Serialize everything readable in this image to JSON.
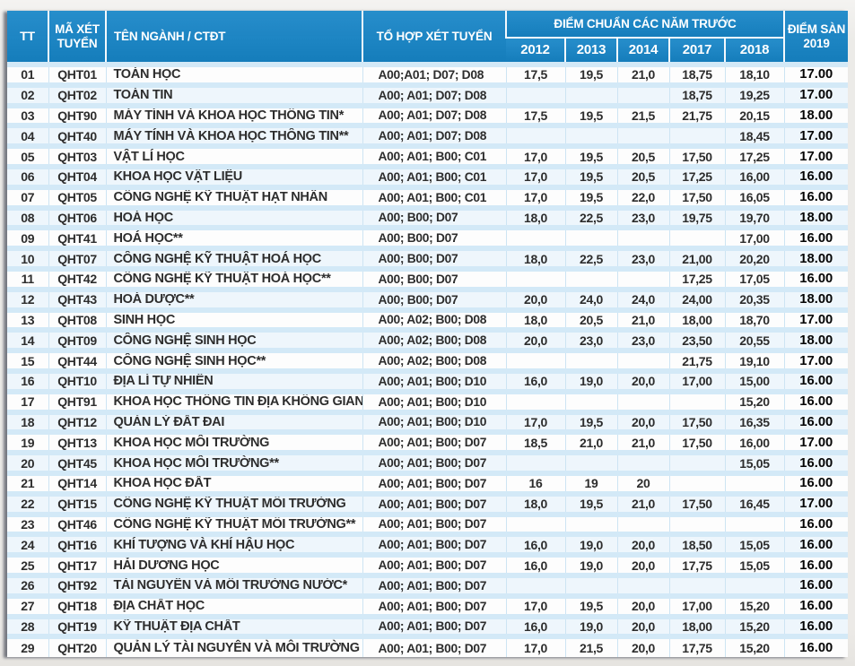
{
  "colors": {
    "page_bg": "#eeedea",
    "header_bg": "#1685c7",
    "header_text": "#ffffff",
    "stripe": "#d3e9f7",
    "grid_line": "#cde4f3",
    "body_text": "#2d2d2d",
    "floor_text": "#050505"
  },
  "table": {
    "header": {
      "tt": "TT",
      "code": "MÃ XÉT TUYỂN",
      "name": "TÊN NGÀNH / CTĐT",
      "combo": "TỔ HỢP XÉT TUYỂN",
      "prev_scores_group": "ĐIỂM CHUẨN CÁC NĂM TRƯỚC",
      "years": [
        "2012",
        "2013",
        "2014",
        "2017",
        "2018"
      ],
      "floor": "ĐIỂM SÀN",
      "floor_year": "2019"
    },
    "rows": [
      [
        "01",
        "QHT01",
        "TOÁN HỌC",
        "A00;A01; D07; D08",
        "17,5",
        "19,5",
        "21,0",
        "18,75",
        "18,10",
        "17.00"
      ],
      [
        "02",
        "QHT02",
        "TOÁN TIN",
        "A00; A01; D07; D08",
        "",
        "",
        "",
        "18,75",
        "19,25",
        "17.00"
      ],
      [
        "03",
        "QHT90",
        "MÁY TÍNH VÀ KHOA HỌC THÔNG TIN*",
        "A00; A01; D07; D08",
        "17,5",
        "19,5",
        "21,5",
        "21,75",
        "20,15",
        "18.00"
      ],
      [
        "04",
        "QHT40",
        "MÁY TÍNH VÀ KHOA HỌC THÔNG TIN**",
        "A00; A01; D07; D08",
        "",
        "",
        "",
        "",
        "18,45",
        "17.00"
      ],
      [
        "05",
        "QHT03",
        "VẬT LÍ HỌC",
        "A00; A01; B00; C01",
        "17,0",
        "19,5",
        "20,5",
        "17,50",
        "17,25",
        "17.00"
      ],
      [
        "06",
        "QHT04",
        "KHOA HỌC VẬT LIỆU",
        "A00; A01; B00; C01",
        "17,0",
        "19,5",
        "20,5",
        "17,25",
        "16,00",
        "16.00"
      ],
      [
        "07",
        "QHT05",
        "CÔNG NGHỆ KỸ THUẬT HẠT NHÂN",
        "A00; A01; B00; C01",
        "17,0",
        "19,5",
        "22,0",
        "17,50",
        "16,05",
        "16.00"
      ],
      [
        "08",
        "QHT06",
        "HOÁ HỌC",
        "A00; B00; D07",
        "18,0",
        "22,5",
        "23,0",
        "19,75",
        "19,70",
        "18.00"
      ],
      [
        "09",
        "QHT41",
        "HOÁ HỌC**",
        "A00; B00; D07",
        "",
        "",
        "",
        "",
        "17,00",
        "16.00"
      ],
      [
        "10",
        "QHT07",
        "CÔNG NGHỆ KỸ THUẬT HOÁ HỌC",
        "A00; B00; D07",
        "18,0",
        "22,5",
        "23,0",
        "21,00",
        "20,20",
        "18.00"
      ],
      [
        "11",
        "QHT42",
        "CÔNG NGHỆ KỸ THUẬT HOÁ HỌC**",
        "A00; B00; D07",
        "",
        "",
        "",
        "17,25",
        "17,05",
        "16.00"
      ],
      [
        "12",
        "QHT43",
        "HOÁ DƯỢC**",
        "A00; B00; D07",
        "20,0",
        "24,0",
        "24,0",
        "24,00",
        "20,35",
        "18.00"
      ],
      [
        "13",
        "QHT08",
        "SINH HỌC",
        "A00; A02; B00; D08",
        "18,0",
        "20,5",
        "21,0",
        "18,00",
        "18,70",
        "17.00"
      ],
      [
        "14",
        "QHT09",
        "CÔNG NGHỆ SINH HỌC",
        "A00; A02; B00; D08",
        "20,0",
        "23,0",
        "23,0",
        "23,50",
        "20,55",
        "18.00"
      ],
      [
        "15",
        "QHT44",
        "CÔNG NGHỆ SINH HỌC**",
        "A00; A02; B00; D08",
        "",
        "",
        "",
        "21,75",
        "19,10",
        "17.00"
      ],
      [
        "16",
        "QHT10",
        "ĐỊA LÍ TỰ NHIÊN",
        "A00; A01; B00; D10",
        "16,0",
        "19,0",
        "20,0",
        "17,00",
        "15,00",
        "16.00"
      ],
      [
        "17",
        "QHT91",
        "KHOA HỌC THÔNG TIN ĐỊA KHÔNG GIAN*",
        "A00; A01; B00; D10",
        "",
        "",
        "",
        "",
        "15,20",
        "16.00"
      ],
      [
        "18",
        "QHT12",
        "QUẢN LÝ ĐẤT ĐAI",
        "A00; A01; B00; D10",
        "17,0",
        "19,5",
        "20,0",
        "17,50",
        "16,35",
        "16.00"
      ],
      [
        "19",
        "QHT13",
        "KHOA HỌC MÔI TRƯỜNG",
        "A00; A01; B00; D07",
        "18,5",
        "21,0",
        "21,0",
        "17,50",
        "16,00",
        "17.00"
      ],
      [
        "20",
        "QHT45",
        "KHOA HỌC MÔI TRƯỜNG**",
        "A00; A01; B00; D07",
        "",
        "",
        "",
        "",
        "15,05",
        "16.00"
      ],
      [
        "21",
        "QHT14",
        "KHOA HỌC ĐẤT",
        "A00; A01; B00; D07",
        "16",
        "19",
        "20",
        "",
        "",
        "16.00"
      ],
      [
        "22",
        "QHT15",
        "CÔNG NGHỆ KỸ THUẬT MÔI TRƯỜNG",
        "A00; A01; B00; D07",
        "18,0",
        "19,5",
        "21,0",
        "17,50",
        "16,45",
        "17.00"
      ],
      [
        "23",
        "QHT46",
        "CÔNG NGHỆ KỸ THUẬT MÔI TRƯỜNG**",
        "A00; A01; B00; D07",
        "",
        "",
        "",
        "",
        "",
        "16.00"
      ],
      [
        "24",
        "QHT16",
        "KHÍ TƯỢNG VÀ KHÍ HẬU HỌC",
        "A00; A01; B00; D07",
        "16,0",
        "19,0",
        "20,0",
        "18,50",
        "15,05",
        "16.00"
      ],
      [
        "25",
        "QHT17",
        "HẢI DƯƠNG HỌC",
        "A00; A01; B00; D07",
        "16,0",
        "19,0",
        "20,0",
        "17,75",
        "15,05",
        "16.00"
      ],
      [
        "26",
        "QHT92",
        "TÀI NGUYÊN VÀ MÔI TRƯỜNG NƯỚC*",
        "A00; A01; B00; D07",
        "",
        "",
        "",
        "",
        "",
        "16.00"
      ],
      [
        "27",
        "QHT18",
        "ĐỊA CHẤT HỌC",
        "A00; A01; B00; D07",
        "17,0",
        "19,5",
        "20,0",
        "17,00",
        "15,20",
        "16.00"
      ],
      [
        "28",
        "QHT19",
        "KỸ THUẬT ĐỊA CHẤT",
        "A00; A01; B00; D07",
        "16,0",
        "19,0",
        "20,0",
        "18,00",
        "15,20",
        "16.00"
      ],
      [
        "29",
        "QHT20",
        "QUẢN LÝ TÀI NGUYÊN VÀ MÔI TRƯỜNG",
        "A00; A01; B00; D07",
        "17,0",
        "21,5",
        "20,0",
        "17,75",
        "15,20",
        "16.00"
      ]
    ]
  }
}
